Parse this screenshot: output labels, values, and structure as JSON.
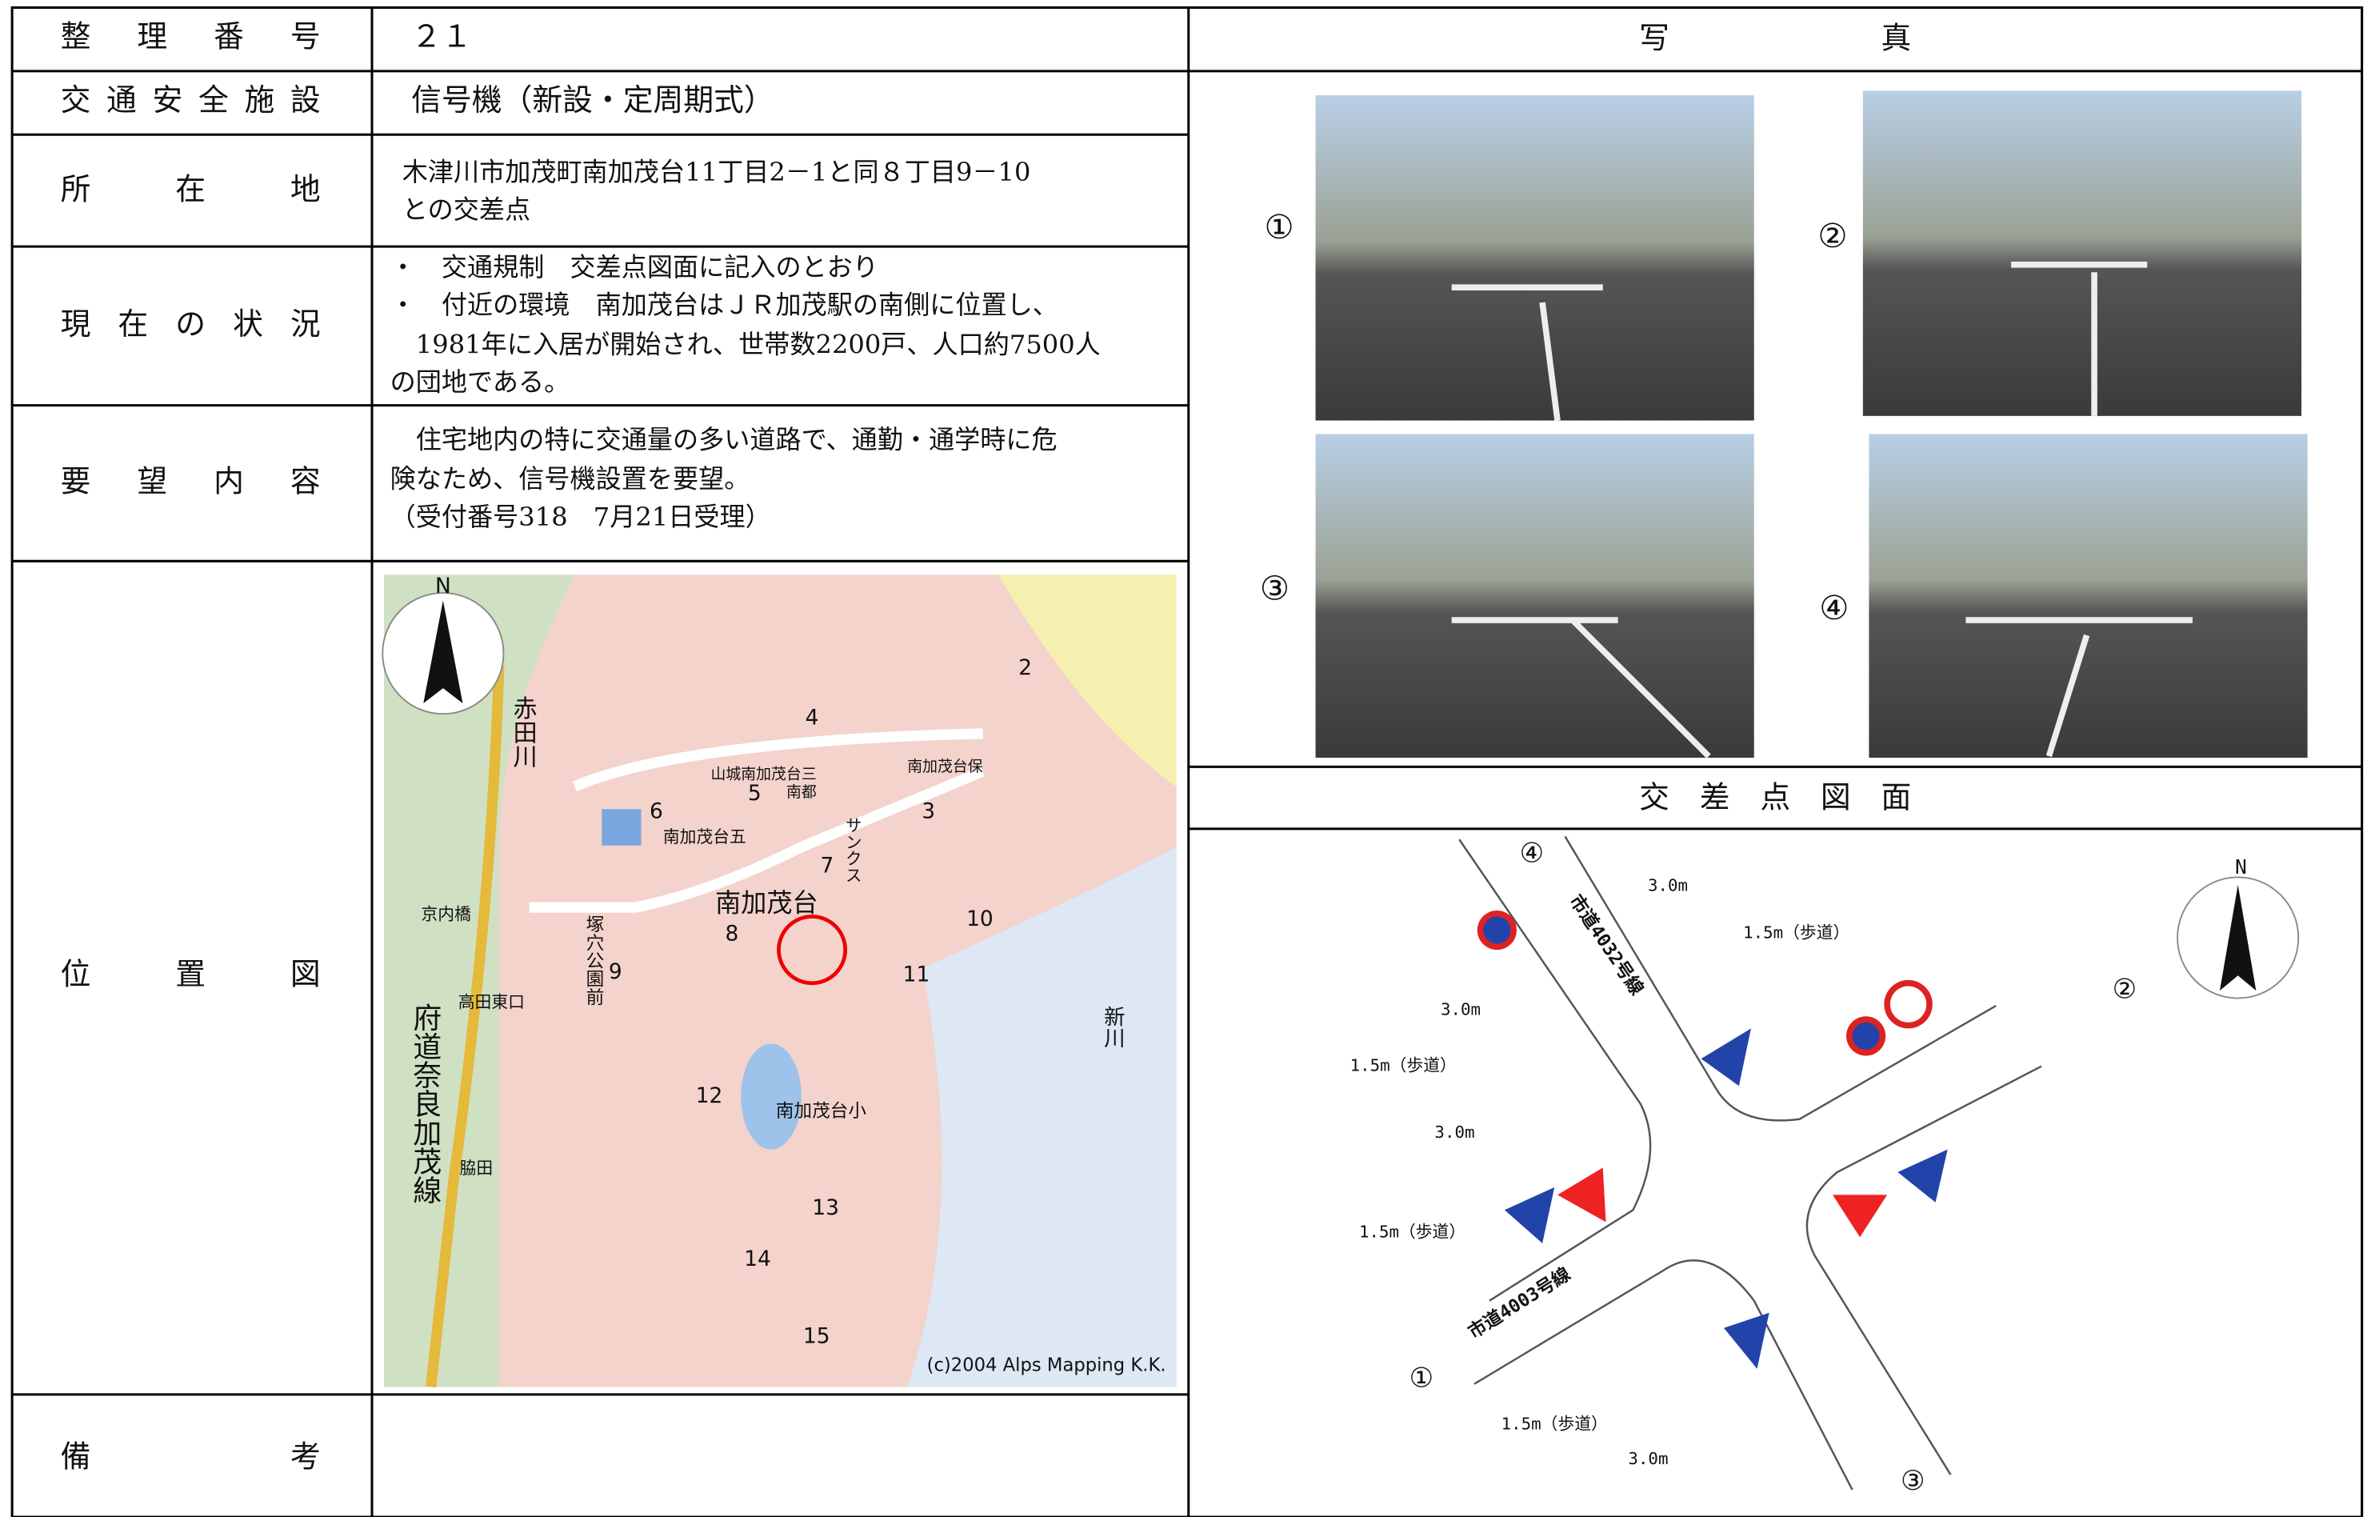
{
  "rows": [
    {
      "label": "整　理　番　号",
      "value": [
        "２１"
      ]
    },
    {
      "label": "交通安全施設",
      "value": [
        "信号機（新設・定周期式）"
      ]
    },
    {
      "label": "所　　在　　地",
      "value": [
        "木津川市加茂町南加茂台11丁目2－1と同８丁目9－10",
        "との交差点"
      ]
    },
    {
      "label": "現 在 の 状 況",
      "value": [
        "・　交通規制　交差点図面に記入のとおり",
        "・　付近の環境　南加茂台はＪＲ加茂駅の南側に位置し、",
        "　1981年に入居が開始され、世帯数2200戸、人口約7500人",
        "の団地である。"
      ]
    },
    {
      "label": "要　望　内　容",
      "value": [
        "　住宅地内の特に交通量の多い道路で、通勤・通学時に危",
        "険なため、信号機設置を要望。",
        "（受付番号318　7月21日受理）"
      ]
    },
    {
      "label": "位　　置　　図"
    },
    {
      "label": "備　　　　　　考"
    }
  ],
  "photos": {
    "header": "写　　　　　　　真",
    "labels": [
      "①",
      "②",
      "③",
      "④"
    ]
  },
  "map": {
    "labels": [
      "N",
      "赤田川",
      "4",
      "2",
      "6",
      "5",
      "3",
      "7",
      "8",
      "10",
      "9",
      "11",
      "12",
      "13",
      "14",
      "15",
      "南加茂台",
      "南加茂台五",
      "山城南加茂台三",
      "南都",
      "サンクス",
      "南加茂台保",
      "京内橋",
      "塚穴公園前",
      "高田東口",
      "府道奈良加茂線",
      "脇田",
      "南加茂台小",
      "新川",
      "(c)2004 Alps Mapping K.K."
    ]
  },
  "diagram": {
    "header": "交　差　点　図　面",
    "labels": [
      "④",
      "市道4032号線",
      "3.0m",
      "1.5m（歩道）",
      "3.0m",
      "1.5m（歩道）",
      "②",
      "3.0m",
      "1.5m（歩道）",
      "市道4003号線",
      "①",
      "1.5m（歩道）",
      "3.0m",
      "③",
      "N"
    ]
  }
}
